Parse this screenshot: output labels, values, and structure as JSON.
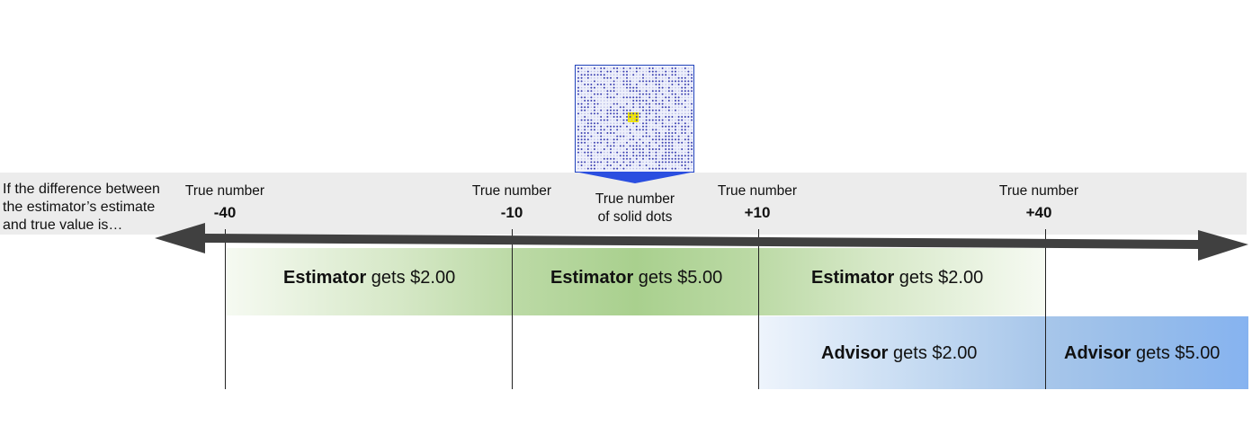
{
  "prompt": "If the difference between the estimator’s estimate and true value is…",
  "axis_labels": [
    {
      "caption": "True number",
      "value": "-40"
    },
    {
      "caption": "True number",
      "value": "-10"
    },
    {
      "caption": "True number",
      "value": "+10"
    },
    {
      "caption": "True number",
      "value": "+40"
    }
  ],
  "center_label": {
    "line1": "True number",
    "line2": "of solid dots"
  },
  "estimator_zones": [
    {
      "role": "Estimator",
      "text": " gets $2.00"
    },
    {
      "role": "Estimator",
      "text": " gets $5.00"
    },
    {
      "role": "Estimator",
      "text": " gets $2.00"
    }
  ],
  "advisor_zones": [
    {
      "role": "Advisor",
      "text": " gets $2.00"
    },
    {
      "role": "Advisor",
      "text": " gets $5.00"
    }
  ],
  "colors": {
    "band": "#ececec",
    "axis": "#404040",
    "estimator_green": "#a9d08e",
    "advisor_blue": "#8db4e2",
    "stimulus_border": "#2244bb",
    "stimulus_dots": "#3a3fb0",
    "stimulus_highlight": "#f2e600"
  },
  "icons": {
    "stimulus": "dot-array-image-icon",
    "axis": "double-arrow-icon"
  }
}
